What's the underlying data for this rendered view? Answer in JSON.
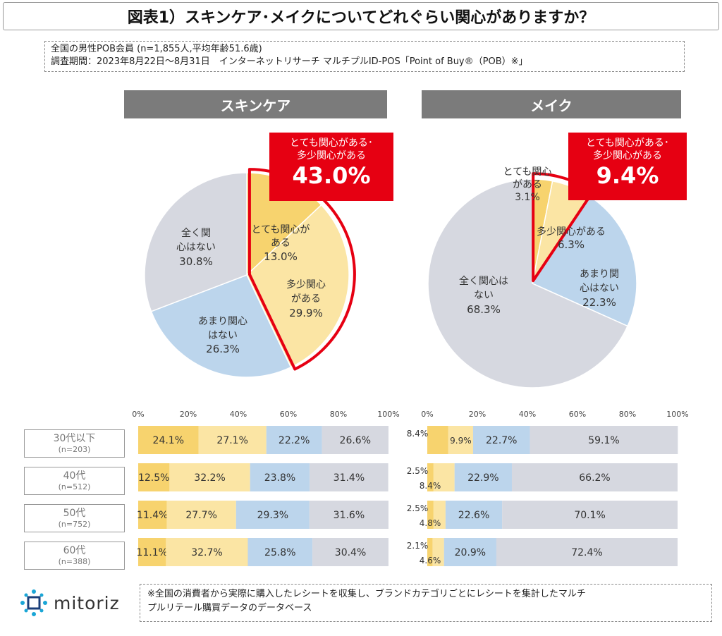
{
  "title": "図表1）スキンケア･メイクについてどれぐらい関心がありますか？",
  "meta": {
    "line1": "全国の男性POB会員 (n=1,855人,平均年齢51.6歳)",
    "line2": "調査期間：2023年8月22日～8月31日　インターネットリサーチ マルチプルID-POS「Point of Buy®（POB）※」"
  },
  "skincare": {
    "header": "スキンケア",
    "callout_sub1": "とても関心がある･",
    "callout_sub2": "多少関心がある",
    "callout_value": "43.0%",
    "labels": {
      "very_a": "とても関心が",
      "very_b": "ある",
      "very_v": "13.0%",
      "some_a": "多少関心",
      "some_b": "がある",
      "some_v": "29.9%",
      "notmuch_a": "あまり関心",
      "notmuch_b": "はない",
      "notmuch_v": "26.3%",
      "none_a": "全く関",
      "none_b": "心はない",
      "none_v": "30.8%"
    }
  },
  "makeup": {
    "header": "メイク",
    "callout_sub1": "とても関心がある･",
    "callout_sub2": "多少関心がある",
    "callout_value": "9.4%",
    "labels": {
      "very_a": "とても関心",
      "very_b": "がある",
      "very_v": "3.1%",
      "some_a": "多少関心がある",
      "some_v": "6.3%",
      "notmuch_a": "あまり関",
      "notmuch_b": "心はない",
      "notmuch_v": "22.3%",
      "none_a": "全く関心は",
      "none_b": "ない",
      "none_v": "68.3%"
    }
  },
  "ages": [
    {
      "label": "30代以下",
      "n": "(n=203)"
    },
    {
      "label": "40代",
      "n": "(n=512)"
    },
    {
      "label": "50代",
      "n": "(n=752)"
    },
    {
      "label": "60代",
      "n": "(n=388)"
    }
  ],
  "axis_ticks": [
    "0%",
    "20%",
    "40%",
    "60%",
    "80%",
    "100%"
  ],
  "footer": {
    "line1": "※全国の消費者から実際に購入したレシートを収集し、ブランドカテゴリごとにレシートを集計したマルチ",
    "line2": "プルリテール購買データのデータベース"
  },
  "logo_text": "mitoriz",
  "colors": {
    "very": "#f7d36e",
    "some": "#fbe5a4",
    "notmuch": "#bcd5ec",
    "none": "#d6d8e0",
    "highlight": "#e60012",
    "header": "#7b7b7b"
  },
  "chart_data": [
    {
      "type": "pie",
      "title": "スキンケア",
      "categories": [
        "とても関心がある",
        "多少関心がある",
        "あまり関心はない",
        "全く関心はない"
      ],
      "values": [
        13.0,
        29.9,
        26.3,
        30.8
      ],
      "highlight": "とても関心がある･多少関心がある 43.0%"
    },
    {
      "type": "pie",
      "title": "メイク",
      "categories": [
        "とても関心がある",
        "多少関心がある",
        "あまり関心はない",
        "全く関心はない"
      ],
      "values": [
        3.1,
        6.3,
        22.3,
        68.3
      ],
      "highlight": "とても関心がある･多少関心がある 9.4%"
    },
    {
      "type": "bar",
      "orientation": "horizontal-stacked",
      "title": "スキンケア",
      "categories": [
        "30代以下",
        "40代",
        "50代",
        "60代"
      ],
      "series": [
        {
          "name": "とても関心がある",
          "values": [
            24.1,
            12.5,
            11.4,
            11.1
          ]
        },
        {
          "name": "多少関心がある",
          "values": [
            27.1,
            32.2,
            27.7,
            32.7
          ]
        },
        {
          "name": "あまり関心はない",
          "values": [
            22.2,
            23.8,
            29.3,
            25.8
          ]
        },
        {
          "name": "全く関心はない",
          "values": [
            26.6,
            31.4,
            31.6,
            30.4
          ]
        }
      ],
      "xlim": [
        0,
        100
      ]
    },
    {
      "type": "bar",
      "orientation": "horizontal-stacked",
      "title": "メイク",
      "categories": [
        "30代以下",
        "40代",
        "50代",
        "60代"
      ],
      "series": [
        {
          "name": "とても関心がある",
          "values": [
            8.4,
            2.5,
            2.5,
            2.1
          ]
        },
        {
          "name": "多少関心がある",
          "values": [
            9.9,
            8.4,
            4.8,
            4.6
          ]
        },
        {
          "name": "あまり関心はない",
          "values": [
            22.7,
            22.9,
            22.6,
            20.9
          ]
        },
        {
          "name": "全く関心はない",
          "values": [
            59.1,
            66.2,
            70.1,
            72.4
          ]
        }
      ],
      "xlim": [
        0,
        100
      ]
    }
  ]
}
